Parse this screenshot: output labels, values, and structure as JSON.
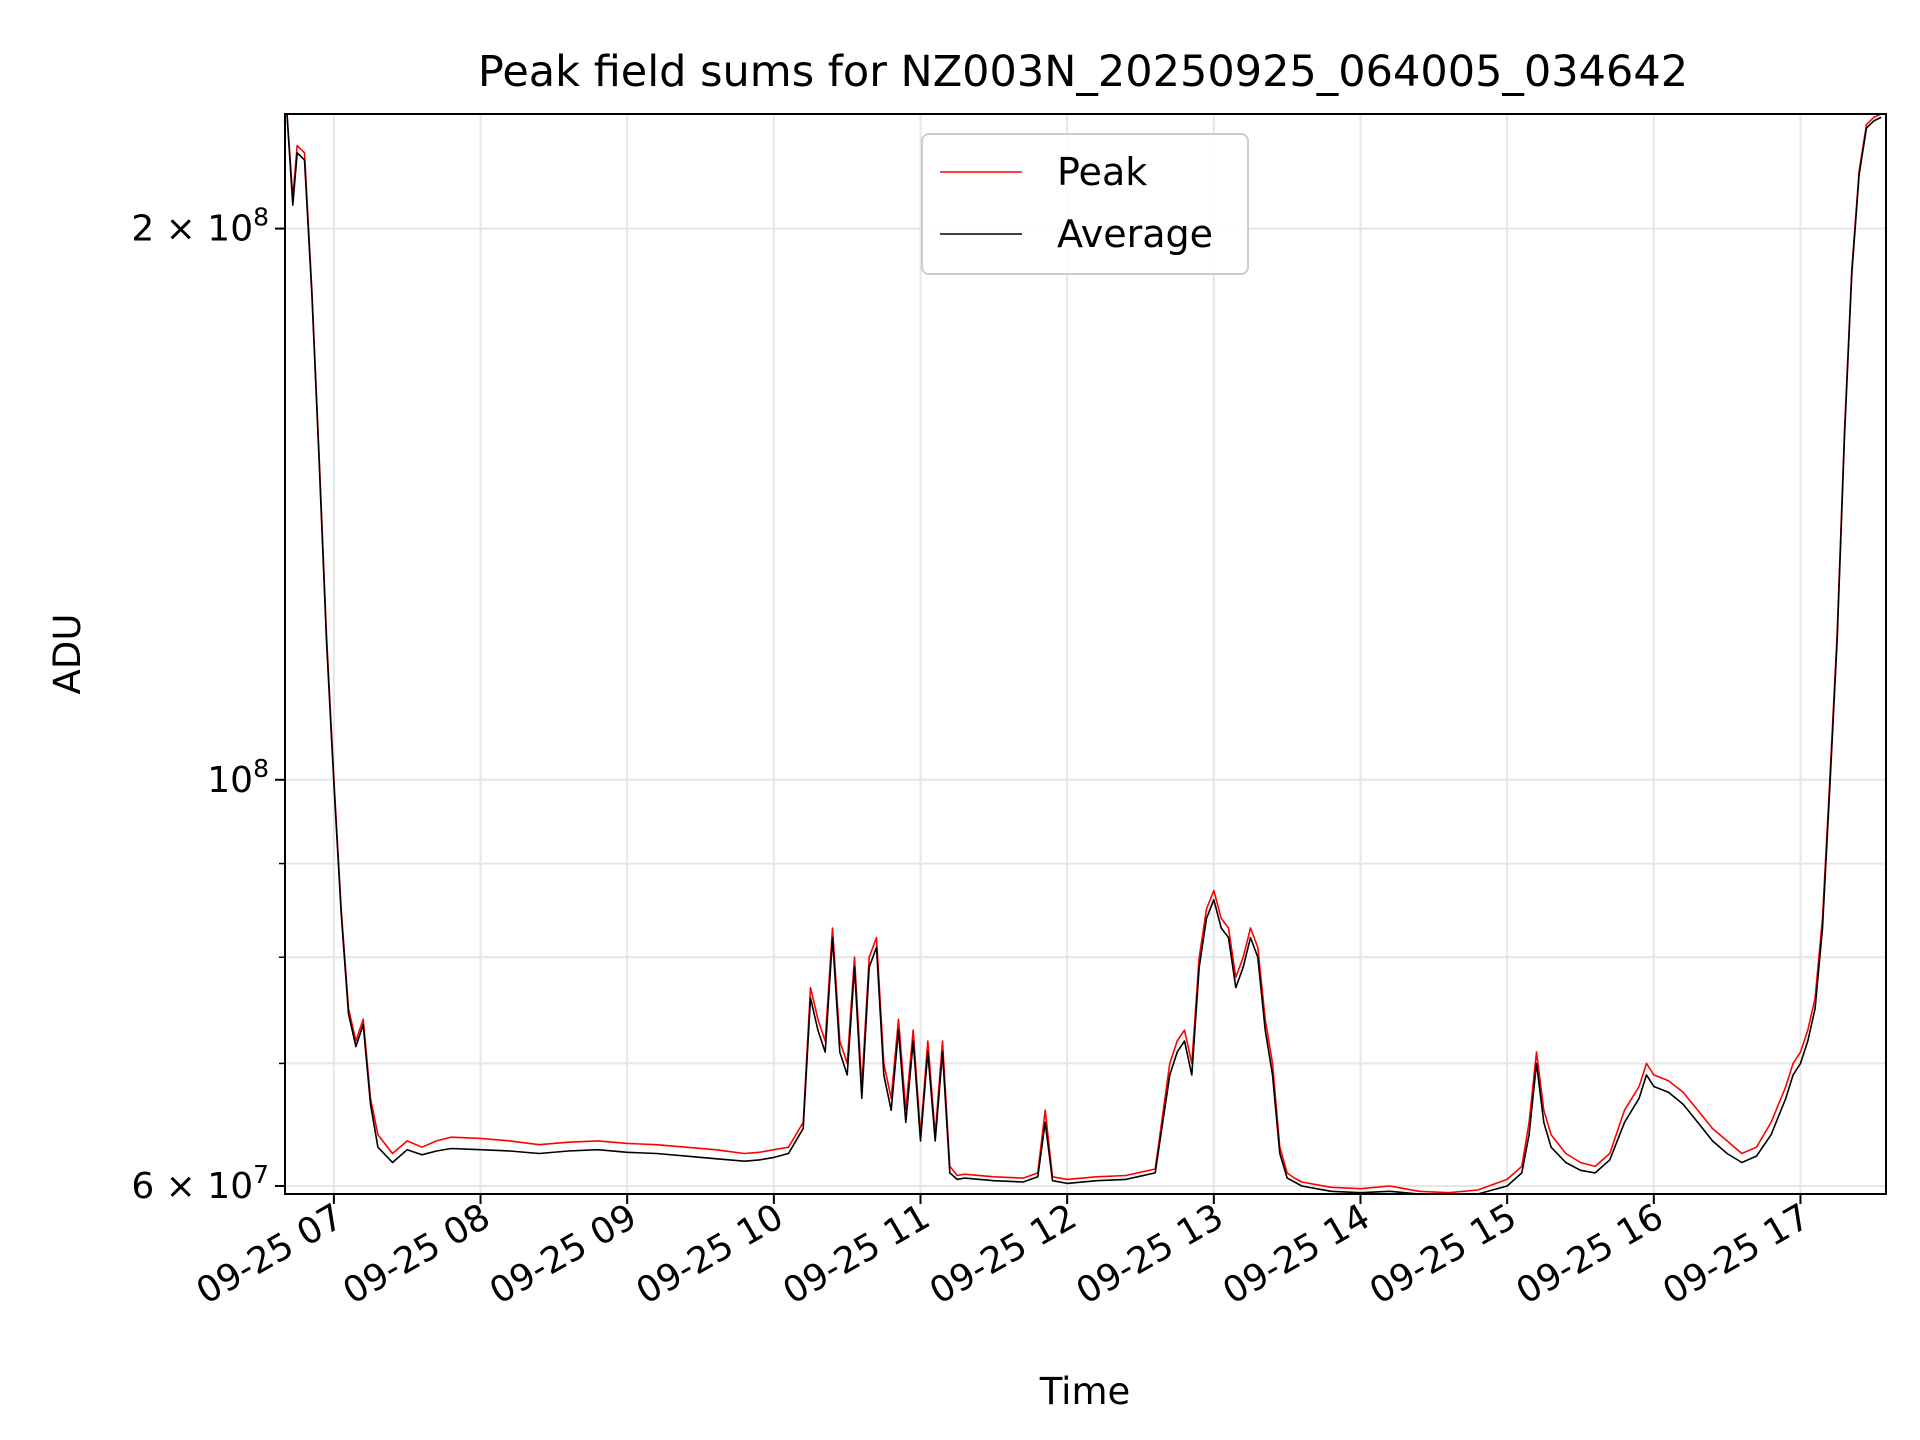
{
  "chart_data": {
    "type": "line",
    "title": "Peak field sums for NZ003N_20250925_064005_034642",
    "xlabel": "Time",
    "ylabel": "ADU",
    "yscale": "log",
    "xlim": [
      "09-25 06:40",
      "09-25 17:35"
    ],
    "ylim": [
      59400000,
      231000000
    ],
    "grid": true,
    "legend_position": "top-center",
    "x_ticks": [
      "09-25 07",
      "09-25 08",
      "09-25 09",
      "09-25 10",
      "09-25 11",
      "09-25 12",
      "09-25 13",
      "09-25 14",
      "09-25 15",
      "09-25 16",
      "09-25 17"
    ],
    "y_ticks": [
      {
        "value": 60000000,
        "label_base": "6 × 10",
        "label_exp": "7"
      },
      {
        "value": 100000000,
        "label_base": "10",
        "label_exp": "8"
      },
      {
        "value": 200000000,
        "label_base": "2 × 10",
        "label_exp": "8"
      }
    ],
    "x_hours": [
      6.68,
      6.72,
      6.75,
      6.8,
      6.85,
      6.9,
      6.95,
      7.0,
      7.05,
      7.1,
      7.15,
      7.2,
      7.25,
      7.3,
      7.4,
      7.5,
      7.6,
      7.7,
      7.8,
      8.0,
      8.2,
      8.4,
      8.6,
      8.8,
      9.0,
      9.2,
      9.4,
      9.6,
      9.8,
      9.9,
      10.0,
      10.1,
      10.2,
      10.25,
      10.3,
      10.35,
      10.4,
      10.45,
      10.5,
      10.55,
      10.6,
      10.65,
      10.7,
      10.75,
      10.8,
      10.85,
      10.9,
      10.95,
      11.0,
      11.05,
      11.1,
      11.15,
      11.2,
      11.25,
      11.3,
      11.5,
      11.7,
      11.8,
      11.85,
      11.9,
      12.0,
      12.2,
      12.4,
      12.6,
      12.7,
      12.75,
      12.8,
      12.85,
      12.9,
      12.95,
      13.0,
      13.05,
      13.1,
      13.15,
      13.2,
      13.25,
      13.3,
      13.35,
      13.4,
      13.45,
      13.5,
      13.55,
      13.6,
      13.7,
      13.8,
      14.0,
      14.2,
      14.4,
      14.6,
      14.8,
      15.0,
      15.1,
      15.15,
      15.2,
      15.25,
      15.3,
      15.4,
      15.5,
      15.6,
      15.7,
      15.8,
      15.9,
      15.95,
      16.0,
      16.1,
      16.2,
      16.3,
      16.4,
      16.5,
      16.6,
      16.7,
      16.8,
      16.9,
      16.95,
      17.0,
      17.05,
      17.1,
      17.15,
      17.2,
      17.25,
      17.3,
      17.35,
      17.4,
      17.45,
      17.5,
      17.55
    ],
    "series": [
      {
        "name": "Peak",
        "color": "#ff0000",
        "values": [
          240000000,
          208000000,
          222000000,
          220000000,
          185000000,
          150000000,
          120000000,
          100000000,
          85000000,
          75000000,
          72000000,
          74000000,
          67000000,
          64000000,
          62500000,
          63500000,
          63000000,
          63500000,
          63800000,
          63700000,
          63500000,
          63200000,
          63400000,
          63500000,
          63300000,
          63200000,
          63000000,
          62800000,
          62500000,
          62600000,
          62800000,
          63000000,
          65000000,
          77000000,
          74000000,
          72000000,
          83000000,
          72000000,
          70000000,
          80000000,
          68000000,
          80000000,
          82000000,
          70000000,
          67000000,
          74000000,
          66000000,
          73000000,
          64000000,
          72000000,
          64000000,
          72000000,
          61500000,
          60800000,
          60900000,
          60700000,
          60600000,
          61000000,
          66000000,
          60700000,
          60500000,
          60700000,
          60800000,
          61300000,
          70000000,
          72000000,
          73000000,
          70000000,
          80000000,
          85000000,
          87000000,
          84000000,
          83000000,
          78000000,
          80000000,
          83000000,
          81000000,
          74000000,
          70000000,
          63000000,
          61000000,
          60600000,
          60300000,
          60100000,
          59900000,
          59800000,
          60000000,
          59600000,
          59500000,
          59700000,
          60500000,
          61500000,
          65000000,
          71000000,
          66000000,
          64000000,
          62500000,
          61800000,
          61500000,
          62500000,
          66000000,
          68000000,
          70000000,
          69000000,
          68500000,
          67500000,
          66000000,
          64500000,
          63500000,
          62500000,
          63000000,
          65000000,
          68000000,
          70000000,
          71000000,
          73000000,
          76000000,
          84000000,
          100000000,
          120000000,
          155000000,
          190000000,
          215000000,
          228000000,
          230000000,
          231000000
        ]
      },
      {
        "name": "Average",
        "color": "#000000",
        "values": [
          240000000,
          206000000,
          220000000,
          218000000,
          184000000,
          149000000,
          119000000,
          99500000,
          84500000,
          74500000,
          71500000,
          73500000,
          66500000,
          63000000,
          61800000,
          62800000,
          62400000,
          62700000,
          62900000,
          62800000,
          62700000,
          62500000,
          62700000,
          62800000,
          62600000,
          62500000,
          62300000,
          62100000,
          61900000,
          62000000,
          62200000,
          62500000,
          64500000,
          76000000,
          73000000,
          71000000,
          82000000,
          71000000,
          69000000,
          79000000,
          67000000,
          79000000,
          81000000,
          69000000,
          66000000,
          73000000,
          65000000,
          72000000,
          63500000,
          71000000,
          63500000,
          71000000,
          61000000,
          60500000,
          60600000,
          60400000,
          60300000,
          60700000,
          65000000,
          60400000,
          60200000,
          60400000,
          60500000,
          61000000,
          69000000,
          71000000,
          72000000,
          69000000,
          79000000,
          84000000,
          86000000,
          83000000,
          82000000,
          77000000,
          79000000,
          82000000,
          80000000,
          73000000,
          69000000,
          62500000,
          60600000,
          60300000,
          60000000,
          59800000,
          59600000,
          59500000,
          59600000,
          59300000,
          59200000,
          59400000,
          60000000,
          61000000,
          64000000,
          70000000,
          65000000,
          63000000,
          61800000,
          61200000,
          61000000,
          62000000,
          65000000,
          67000000,
          69000000,
          68000000,
          67500000,
          66500000,
          65000000,
          63500000,
          62500000,
          61800000,
          62300000,
          64000000,
          67000000,
          69000000,
          70000000,
          72000000,
          75000000,
          83000000,
          99000000,
          119000000,
          154000000,
          189000000,
          214000000,
          227000000,
          229000000,
          230000000
        ]
      }
    ]
  }
}
